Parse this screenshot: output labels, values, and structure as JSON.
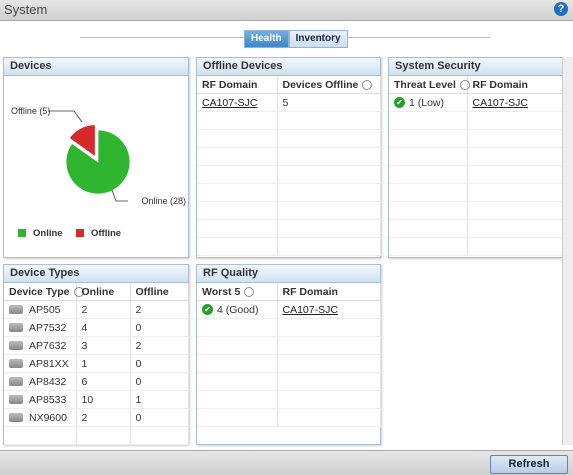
{
  "header": {
    "title": "System"
  },
  "tabs": [
    "Health",
    "Inventory"
  ],
  "devices": {
    "title": "Devices",
    "chart": {
      "type": "pie",
      "categories": [
        "Online",
        "Offline"
      ],
      "values": [
        28,
        5
      ],
      "value_labels": [
        "Online (28)",
        "Offline (5)"
      ],
      "colors": [
        "#2fb52f",
        "#d42a2a"
      ]
    }
  },
  "offline_devices": {
    "title": "Offline Devices",
    "columns": [
      "RF Domain",
      "Devices Offline"
    ],
    "rows": [
      [
        "CA107-SJC",
        5
      ]
    ]
  },
  "system_security": {
    "title": "System Security",
    "columns": [
      "Threat Level",
      "RF Domain"
    ],
    "rows": [
      [
        "1 (Low)",
        "CA107-SJC"
      ]
    ]
  },
  "device_types": {
    "title": "Device Types",
    "columns": [
      "Device Type",
      "Online",
      "Offline"
    ],
    "rows": [
      [
        "AP505",
        2,
        2
      ],
      [
        "AP7532",
        4,
        0
      ],
      [
        "AP7632",
        3,
        2
      ],
      [
        "AP81XX",
        1,
        0
      ],
      [
        "AP8432",
        6,
        0
      ],
      [
        "AP8533",
        10,
        1
      ],
      [
        "NX9600",
        2,
        0
      ]
    ]
  },
  "rf_quality": {
    "title": "RF Quality",
    "columns": [
      "Worst 5",
      "RF Domain"
    ],
    "rows": [
      [
        "4 (Good)",
        "CA107-SJC"
      ]
    ]
  },
  "footer": {
    "button": "Refresh"
  }
}
